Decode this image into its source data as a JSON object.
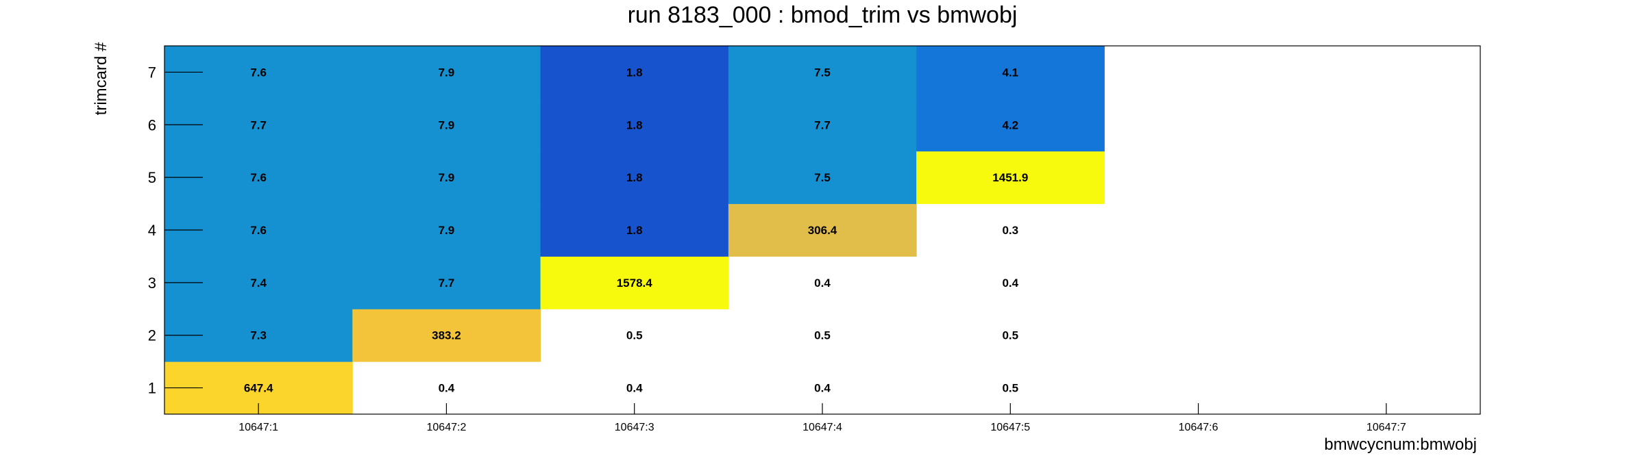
{
  "chart_data": {
    "type": "heatmap",
    "title": "run 8183_000 : bmod_trim vs bmwobj",
    "xlabel": "bmwcycnum:bmwobj",
    "ylabel": "trimcard #",
    "x_categories": [
      "10647:1",
      "10647:2",
      "10647:3",
      "10647:4",
      "10647:5",
      "10647:6",
      "10647:7"
    ],
    "y_categories": [
      "1",
      "2",
      "3",
      "4",
      "5",
      "6",
      "7"
    ],
    "cells": [
      {
        "x": "10647:1",
        "y": "1",
        "value": "647.4",
        "color": "#fbd52b"
      },
      {
        "x": "10647:1",
        "y": "2",
        "value": "7.3",
        "color": "#1591d2"
      },
      {
        "x": "10647:1",
        "y": "3",
        "value": "7.4",
        "color": "#1591d2"
      },
      {
        "x": "10647:1",
        "y": "4",
        "value": "7.6",
        "color": "#1591d2"
      },
      {
        "x": "10647:1",
        "y": "5",
        "value": "7.6",
        "color": "#1591d2"
      },
      {
        "x": "10647:1",
        "y": "6",
        "value": "7.7",
        "color": "#1591d2"
      },
      {
        "x": "10647:1",
        "y": "7",
        "value": "7.6",
        "color": "#1591d2"
      },
      {
        "x": "10647:2",
        "y": "1",
        "value": "0.4",
        "color": ""
      },
      {
        "x": "10647:2",
        "y": "2",
        "value": "383.2",
        "color": "#f3c43a"
      },
      {
        "x": "10647:2",
        "y": "3",
        "value": "7.7",
        "color": "#1591d2"
      },
      {
        "x": "10647:2",
        "y": "4",
        "value": "7.9",
        "color": "#1591d2"
      },
      {
        "x": "10647:2",
        "y": "5",
        "value": "7.9",
        "color": "#1591d2"
      },
      {
        "x": "10647:2",
        "y": "6",
        "value": "7.9",
        "color": "#1591d2"
      },
      {
        "x": "10647:2",
        "y": "7",
        "value": "7.9",
        "color": "#1591d2"
      },
      {
        "x": "10647:3",
        "y": "1",
        "value": "0.4",
        "color": ""
      },
      {
        "x": "10647:3",
        "y": "2",
        "value": "0.5",
        "color": ""
      },
      {
        "x": "10647:3",
        "y": "3",
        "value": "1578.4",
        "color": "#f8fa0d"
      },
      {
        "x": "10647:3",
        "y": "4",
        "value": "1.8",
        "color": "#1753cd"
      },
      {
        "x": "10647:3",
        "y": "5",
        "value": "1.8",
        "color": "#1753cd"
      },
      {
        "x": "10647:3",
        "y": "6",
        "value": "1.8",
        "color": "#1753cd"
      },
      {
        "x": "10647:3",
        "y": "7",
        "value": "1.8",
        "color": "#1753cd"
      },
      {
        "x": "10647:4",
        "y": "1",
        "value": "0.4",
        "color": ""
      },
      {
        "x": "10647:4",
        "y": "2",
        "value": "0.5",
        "color": ""
      },
      {
        "x": "10647:4",
        "y": "3",
        "value": "0.4",
        "color": ""
      },
      {
        "x": "10647:4",
        "y": "4",
        "value": "306.4",
        "color": "#e1bd49"
      },
      {
        "x": "10647:4",
        "y": "5",
        "value": "7.5",
        "color": "#1591d2"
      },
      {
        "x": "10647:4",
        "y": "6",
        "value": "7.7",
        "color": "#1591d2"
      },
      {
        "x": "10647:4",
        "y": "7",
        "value": "7.5",
        "color": "#1591d2"
      },
      {
        "x": "10647:5",
        "y": "1",
        "value": "0.5",
        "color": ""
      },
      {
        "x": "10647:5",
        "y": "2",
        "value": "0.5",
        "color": ""
      },
      {
        "x": "10647:5",
        "y": "3",
        "value": "0.4",
        "color": ""
      },
      {
        "x": "10647:5",
        "y": "4",
        "value": "0.3",
        "color": ""
      },
      {
        "x": "10647:5",
        "y": "5",
        "value": "1451.9",
        "color": "#f8fa0d"
      },
      {
        "x": "10647:5",
        "y": "6",
        "value": "4.2",
        "color": "#1476d9"
      },
      {
        "x": "10647:5",
        "y": "7",
        "value": "4.1",
        "color": "#1476d9"
      }
    ],
    "grid": false,
    "legend": "none"
  }
}
